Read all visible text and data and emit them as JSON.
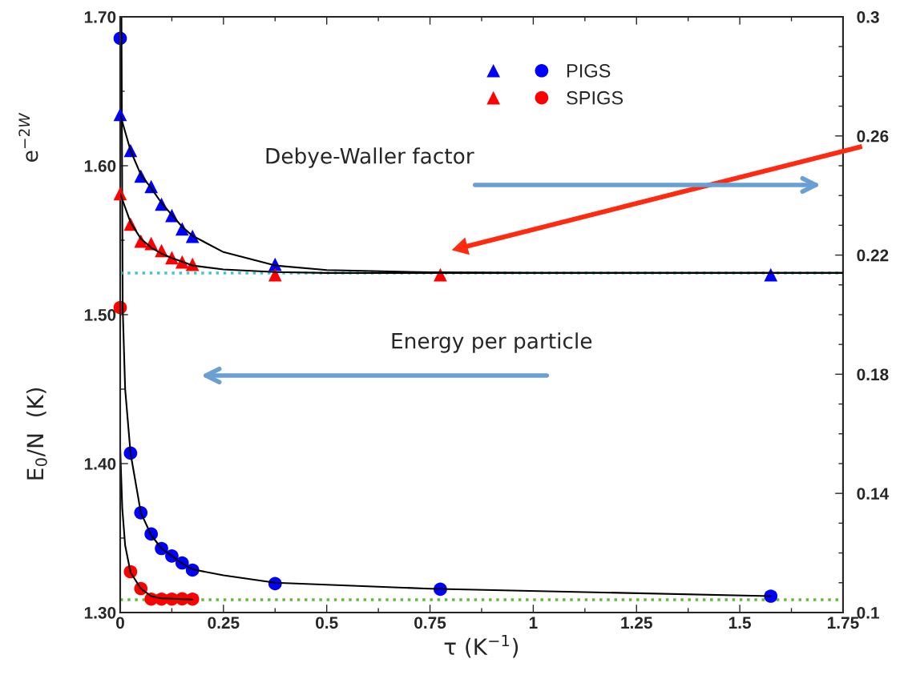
{
  "chart_data": {
    "type": "scatter",
    "xlabel": "τ (K$^{−1}$)",
    "ylabel": "E$_{0}$/N  (K)",
    "annotations": [
      "Debye-Waller factor",
      "Energy per particle",
      "e$^{−2W}$"
    ],
    "xlim": [
      0,
      1.75
    ],
    "xticks": [
      0,
      0.25,
      0.5,
      0.75,
      1,
      1.25,
      1.5,
      1.75
    ],
    "ylim": [
      1.3,
      1.7
    ],
    "yticks": [
      {
        "value": 1.3,
        "label": "1.30"
      },
      {
        "value": 1.4,
        "label": "1.40"
      },
      {
        "value": 1.5,
        "label": "1.50"
      },
      {
        "value": 1.6,
        "label": "1.60"
      },
      {
        "value": 1.7,
        "label": "1.70"
      }
    ],
    "y2lim": [
      0.1,
      0.3
    ],
    "y2ticks": [
      0.1,
      0.14,
      0.18,
      0.22,
      0.26,
      0.3
    ],
    "grid": false,
    "legend": "top right",
    "ref_lines": [
      {
        "axis": "y2",
        "value": 0.214,
        "color": "#40c8c8",
        "line_style": "dotted"
      },
      {
        "axis": "y",
        "value": 1.3086,
        "color": "#5cbf3a",
        "line_style": "dotted"
      }
    ],
    "series": [
      {
        "type": "line",
        "axis": "y2",
        "color": "#000000",
        "marker": "none",
        "x": [
          0,
          0.025,
          0.05,
          0.075,
          0.1,
          0.125,
          0.15,
          0.175,
          0.25,
          0.375,
          0.5,
          0.75,
          1,
          1.75
        ],
        "values": [
          0.2672,
          0.2551,
          0.247,
          0.2425,
          0.2375,
          0.2335,
          0.2295,
          0.2265,
          0.221,
          0.2165,
          0.215,
          0.2142,
          0.214,
          0.214
        ]
      },
      {
        "type": "line",
        "axis": "y2",
        "color": "#000000",
        "marker": "none",
        "x": [
          0,
          0.025,
          0.05,
          0.075,
          0.1,
          0.125,
          0.15,
          0.175,
          0.25,
          0.375,
          0.5,
          0.75,
          1,
          1.75
        ],
        "values": [
          0.2406,
          0.231,
          0.2255,
          0.2225,
          0.2205,
          0.219,
          0.2178,
          0.2165,
          0.2152,
          0.2143,
          0.214,
          0.214,
          0.214,
          0.214
        ]
      },
      {
        "type": "line",
        "axis": "y",
        "color": "#000000",
        "marker": "none",
        "x": [
          0.003,
          0.006,
          0.012,
          0.025,
          0.05,
          0.075,
          0.1,
          0.125,
          0.15,
          0.175,
          0.25,
          0.375,
          0.75,
          1.575
        ],
        "values": [
          1.7,
          1.505,
          1.45,
          1.407,
          1.367,
          1.352,
          1.343,
          1.338,
          1.333,
          1.329,
          1.325,
          1.32,
          1.316,
          1.311
        ]
      },
      {
        "type": "line",
        "axis": "y",
        "color": "#000000",
        "marker": "none",
        "x": [
          0,
          0.005,
          0.012,
          0.025,
          0.05,
          0.075,
          0.1,
          0.175
        ],
        "values": [
          1.41,
          1.37,
          1.345,
          1.327,
          1.316,
          1.311,
          1.3095,
          1.3087
        ]
      },
      {
        "axis": "y2",
        "color": "#0000ff",
        "marker": "triangle",
        "x": [
          0,
          0.025,
          0.05,
          0.075,
          0.1,
          0.125,
          0.15,
          0.175,
          0.375,
          1.575
        ],
        "values": [
          0.2672,
          0.2551,
          0.2465,
          0.243,
          0.2371,
          0.2333,
          0.2288,
          0.2263,
          0.2169,
          0.2134
        ]
      },
      {
        "axis": "y2",
        "color": "#ff0000",
        "marker": "triangle",
        "x": [
          0,
          0.025,
          0.05,
          0.075,
          0.1,
          0.125,
          0.15,
          0.175,
          0.375,
          0.775
        ],
        "values": [
          0.2406,
          0.2304,
          0.2247,
          0.2239,
          0.2215,
          0.2191,
          0.2177,
          0.2169,
          0.2134,
          0.2134
        ]
      },
      {
        "axis": "y",
        "name": "PIGS",
        "color": "#0000ff",
        "marker": "circle",
        "x": [
          0,
          0.025,
          0.05,
          0.075,
          0.1,
          0.125,
          0.15,
          0.175,
          0.375,
          0.775,
          1.575
        ],
        "values": [
          1.6855,
          1.407,
          1.367,
          1.3527,
          1.343,
          1.338,
          1.3333,
          1.3285,
          1.3194,
          1.3156,
          1.311
        ]
      },
      {
        "axis": "y",
        "name": "SPIGS",
        "color": "#ff0000",
        "marker": "circle",
        "x": [
          0,
          0.025,
          0.05,
          0.075,
          0.1,
          0.125,
          0.15,
          0.175
        ],
        "values": [
          1.5048,
          1.3274,
          1.3161,
          1.309,
          1.309,
          1.309,
          1.3092,
          1.309
        ]
      }
    ]
  }
}
